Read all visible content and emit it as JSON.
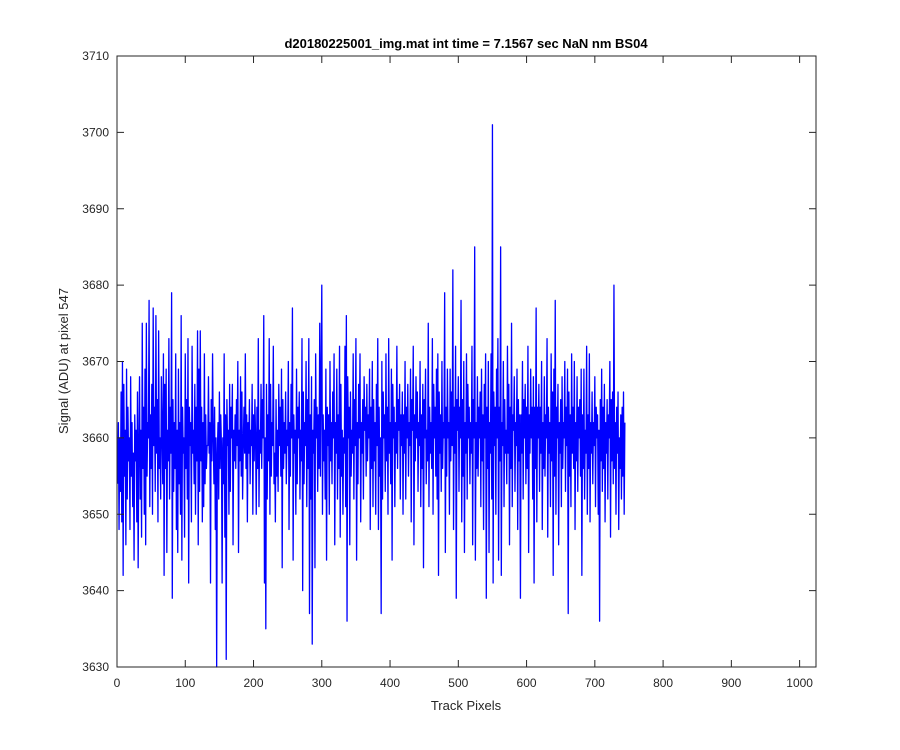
{
  "chart_data": {
    "type": "line",
    "title": "d20180225001_img.mat int time = 7.1567 sec  NaN nm BS04",
    "xlabel": "Track Pixels",
    "ylabel": "Signal (ADU) at pixel 547",
    "xlim": [
      0,
      1024
    ],
    "ylim": [
      3630,
      3710
    ],
    "xticks": [
      0,
      100,
      200,
      300,
      400,
      500,
      600,
      700,
      800,
      900,
      1000
    ],
    "yticks": [
      3630,
      3640,
      3650,
      3660,
      3670,
      3680,
      3690,
      3700,
      3710
    ],
    "grid": false,
    "line_color": "#0000ff",
    "series": [
      {
        "values": [
          3654,
          3662,
          3648,
          3660,
          3653,
          3666,
          3649,
          3670,
          3642,
          3667,
          3655,
          3661,
          3646,
          3669,
          3652,
          3664,
          3657,
          3660,
          3648,
          3668,
          3655,
          3662,
          3651,
          3658,
          3644,
          3663,
          3657,
          3661,
          3649,
          3666,
          3643,
          3659,
          3668,
          3652,
          3661,
          3647,
          3675,
          3656,
          3664,
          3650,
          3669,
          3646,
          3675,
          3655,
          3662,
          3660,
          3678,
          3651,
          3663,
          3656,
          3667,
          3650,
          3677,
          3659,
          3664,
          3653,
          3676,
          3658,
          3665,
          3649,
          3674,
          3656,
          3660,
          3652,
          3668,
          3661,
          3654,
          3671,
          3642,
          3667,
          3656,
          3669,
          3645,
          3661,
          3657,
          3673,
          3652,
          3664,
          3658,
          3679,
          3639,
          3665,
          3653,
          3662,
          3656,
          3671,
          3648,
          3661,
          3645,
          3669,
          3654,
          3662,
          3650,
          3676,
          3644,
          3664,
          3658,
          3660,
          3647,
          3671,
          3656,
          3665,
          3652,
          3673,
          3641,
          3664,
          3659,
          3662,
          3649,
          3672,
          3658,
          3661,
          3654,
          3667,
          3650,
          3664,
          3657,
          3674,
          3646,
          3669,
          3653,
          3674,
          3657,
          3664,
          3649,
          3662,
          3651,
          3671,
          3654,
          3663,
          3656,
          3659,
          3659,
          3668,
          3658,
          3662,
          3641,
          3665,
          3657,
          3671,
          3660,
          3654,
          3664,
          3648,
          3660,
          3630,
          3658,
          3662,
          3652,
          3666,
          3656,
          3663,
          3659,
          3641,
          3660,
          3654,
          3671,
          3647,
          3663,
          3631,
          3665,
          3659,
          3661,
          3650,
          3667,
          3653,
          3664,
          3660,
          3667,
          3646,
          3661,
          3657,
          3663,
          3656,
          3665,
          3659,
          3670,
          3645,
          3661,
          3657,
          3668,
          3655,
          3666,
          3652,
          3659,
          3664,
          3658,
          3671,
          3656,
          3663,
          3649,
          3662,
          3658,
          3665,
          3654,
          3661,
          3659,
          3667,
          3650,
          3663,
          3657,
          3665,
          3660,
          3650,
          3664,
          3656,
          3673,
          3651,
          3661,
          3658,
          3667,
          3656,
          3665,
          3660,
          3676,
          3641,
          3660,
          3635,
          3667,
          3652,
          3663,
          3657,
          3673,
          3650,
          3667,
          3655,
          3662,
          3659,
          3672,
          3654,
          3658,
          3649,
          3665,
          3655,
          3661,
          3653,
          3667,
          3659,
          3664,
          3655,
          3669,
          3643,
          3665,
          3656,
          3662,
          3658,
          3666,
          3654,
          3661,
          3659,
          3670,
          3648,
          3662,
          3655,
          3667,
          3660,
          3677,
          3644,
          3663,
          3658,
          3661,
          3650,
          3669,
          3654,
          3664,
          3660,
          3666,
          3652,
          3661,
          3657,
          3673,
          3640,
          3666,
          3654,
          3662,
          3659,
          3670,
          3651,
          3665,
          3656,
          3673,
          3637,
          3663,
          3652,
          3668,
          3633,
          3661,
          3658,
          3665,
          3643,
          3671,
          3660,
          3664,
          3653,
          3663,
          3656,
          3675,
          3655,
          3668,
          3680,
          3650,
          3663,
          3657,
          3661,
          3652,
          3669,
          3644,
          3664,
          3659,
          3663,
          3650,
          3670,
          3657,
          3662,
          3654,
          3666,
          3660,
          3671,
          3646,
          3662,
          3658,
          3669,
          3652,
          3663,
          3656,
          3672,
          3647,
          3667,
          3655,
          3661,
          3650,
          3660,
          3658,
          3672,
          3651,
          3676,
          3636,
          3668,
          3660,
          3664,
          3646,
          3666,
          3655,
          3661,
          3658,
          3671,
          3652,
          3665,
          3659,
          3673,
          3644,
          3662,
          3654,
          3667,
          3660,
          3671,
          3649,
          3662,
          3658,
          3665,
          3652,
          3668,
          3661,
          3664,
          3655,
          3667,
          3657,
          3663,
          3660,
          3669,
          3648,
          3664,
          3656,
          3670,
          3651,
          3665,
          3657,
          3662,
          3650,
          3667,
          3659,
          3673,
          3648,
          3664,
          3655,
          3660,
          3637,
          3670,
          3652,
          3666,
          3660,
          3663,
          3653,
          3671,
          3657,
          3664,
          3650,
          3673,
          3658,
          3662,
          3654,
          3669,
          3644,
          3667,
          3660,
          3664,
          3651,
          3662,
          3658,
          3672,
          3656,
          3665,
          3661,
          3667,
          3652,
          3663,
          3659,
          3666,
          3650,
          3663,
          3658,
          3670,
          3652,
          3664,
          3660,
          3667,
          3655,
          3662,
          3659,
          3669,
          3649,
          3665,
          3661,
          3672,
          3646,
          3663,
          3657,
          3668,
          3660,
          3666,
          3653,
          3662,
          3659,
          3670,
          3651,
          3663,
          3656,
          3667,
          3643,
          3665,
          3660,
          3669,
          3654,
          3661,
          3657,
          3675,
          3651,
          3664,
          3658,
          3662,
          3656,
          3673,
          3650,
          3667,
          3660,
          3664,
          3655,
          3669,
          3652,
          3671,
          3642,
          3666,
          3658,
          3663,
          3653,
          3670,
          3656,
          3662,
          3660,
          3679,
          3645,
          3664,
          3655,
          3669,
          3660,
          3662,
          3650,
          3669,
          3657,
          3666,
          3659,
          3682,
          3648,
          3664,
          3658,
          3672,
          3639,
          3665,
          3661,
          3668,
          3653,
          3664,
          3660,
          3678,
          3649,
          3665,
          3655,
          3670,
          3645,
          3662,
          3658,
          3671,
          3652,
          3667,
          3660,
          3664,
          3654,
          3662,
          3658,
          3672,
          3646,
          3665,
          3660,
          3685,
          3644,
          3662,
          3656,
          3668,
          3655,
          3664,
          3660,
          3666,
          3651,
          3669,
          3657,
          3663,
          3648,
          3667,
          3660,
          3671,
          3639,
          3664,
          3656,
          3670,
          3645,
          3662,
          3658,
          3671,
          3652,
          3701,
          3641,
          3666,
          3659,
          3664,
          3650,
          3669,
          3660,
          3673,
          3644,
          3664,
          3657,
          3685,
          3642,
          3662,
          3659,
          3670,
          3651,
          3665,
          3658,
          3661,
          3654,
          3672,
          3658,
          3667,
          3646,
          3664,
          3656,
          3675,
          3651,
          3663,
          3661,
          3668,
          3653,
          3662,
          3659,
          3669,
          3648,
          3665,
          3657,
          3663,
          3639,
          3663,
          3658,
          3670,
          3652,
          3665,
          3660,
          3667,
          3654,
          3664,
          3656,
          3672,
          3645,
          3663,
          3658,
          3669,
          3660,
          3664,
          3652,
          3668,
          3641,
          3664,
          3656,
          3677,
          3649,
          3664,
          3660,
          3667,
          3653,
          3664,
          3658,
          3670,
          3648,
          3662,
          3656,
          3668,
          3655,
          3663,
          3660,
          3673,
          3647,
          3664,
          3658,
          3662,
          3651,
          3671,
          3657,
          3666,
          3642,
          3669,
          3655,
          3678,
          3650,
          3664,
          3660,
          3667,
          3646,
          3662,
          3658,
          3665,
          3651,
          3668,
          3656,
          3662,
          3660,
          3670,
          3653,
          3664,
          3659,
          3669,
          3637,
          3666,
          3655,
          3663,
          3651,
          3671,
          3658,
          3664,
          3656,
          3670,
          3648,
          3662,
          3657,
          3668,
          3653,
          3664,
          3660,
          3665,
          3655,
          3669,
          3642,
          3663,
          3656,
          3669,
          3652,
          3661,
          3658,
          3672,
          3650,
          3663,
          3656,
          3671,
          3649,
          3662,
          3658,
          3666,
          3654,
          3662,
          3659,
          3668,
          3651,
          3664,
          3660,
          3663,
          3650,
          3661,
          3636,
          3665,
          3657,
          3669,
          3653,
          3664,
          3656,
          3667,
          3649,
          3662,
          3658,
          3665,
          3652,
          3663,
          3660,
          3670,
          3647,
          3665,
          3657,
          3666,
          3654,
          3680,
          3656,
          3662,
          3650,
          3664,
          3658,
          3666,
          3648,
          3660,
          3656,
          3663,
          3652,
          3664,
          3655,
          3666,
          3650,
          3662
        ]
      }
    ]
  }
}
